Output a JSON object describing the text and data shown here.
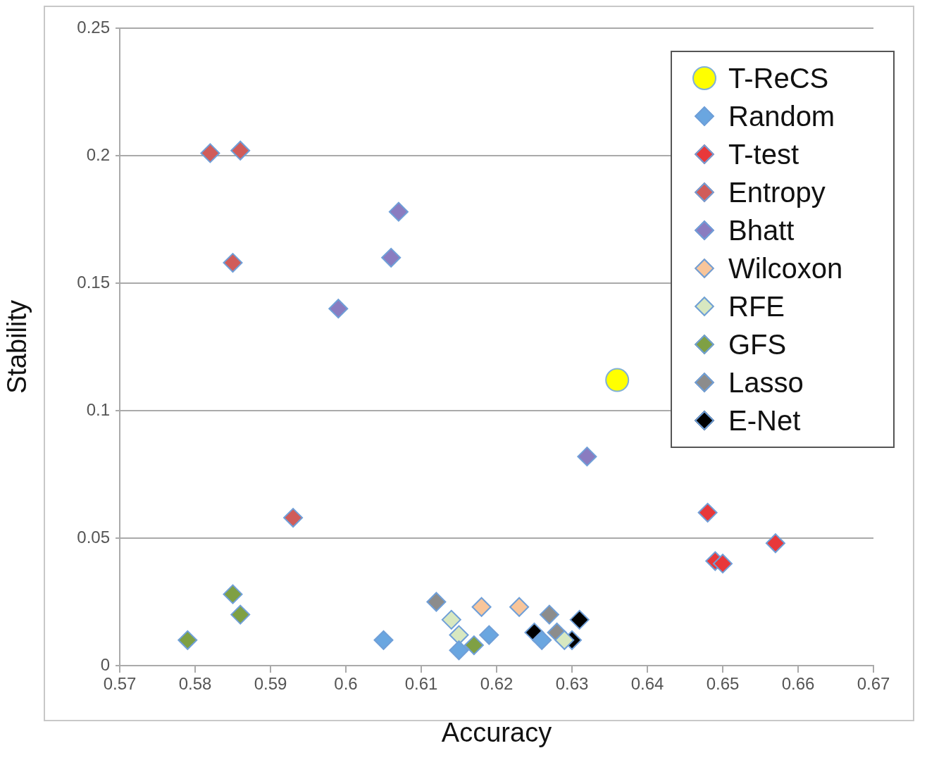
{
  "chart_data": {
    "type": "scatter",
    "xlabel": "Accuracy",
    "ylabel": "Stability",
    "xlim": [
      0.57,
      0.67
    ],
    "xticks": [
      0.57,
      0.58,
      0.59,
      0.6,
      0.61,
      0.62,
      0.63,
      0.64,
      0.65,
      0.66,
      0.67
    ],
    "ylim": [
      0,
      0.25
    ],
    "yticks": [
      0,
      0.05,
      0.1,
      0.15,
      0.2,
      0.25
    ],
    "grid": "y",
    "legend": "top right",
    "marker": "diamond",
    "series": [
      {
        "name": "T-ReCS",
        "color": "#ffff00",
        "marker": "circle",
        "x": [
          0.636
        ],
        "values": [
          0.112
        ]
      },
      {
        "name": "Random",
        "color": "#6aa6e0",
        "x": [
          0.605,
          0.615,
          0.619,
          0.626
        ],
        "values": [
          0.01,
          0.006,
          0.012,
          0.01
        ]
      },
      {
        "name": "T-test",
        "color": "#e8383a",
        "x": [
          0.648,
          0.649,
          0.65,
          0.657
        ],
        "values": [
          0.06,
          0.041,
          0.04,
          0.048
        ]
      },
      {
        "name": "Entropy",
        "color": "#d05c5a",
        "x": [
          0.582,
          0.586,
          0.585,
          0.593
        ],
        "values": [
          0.201,
          0.202,
          0.158,
          0.058
        ]
      },
      {
        "name": "Bhatt",
        "color": "#8a7cc0",
        "x": [
          0.607,
          0.606,
          0.599,
          0.632
        ],
        "values": [
          0.178,
          0.16,
          0.14,
          0.082
        ]
      },
      {
        "name": "Wilcoxon",
        "color": "#f8c59a",
        "x": [
          0.618,
          0.623
        ],
        "values": [
          0.023,
          0.023
        ]
      },
      {
        "name": "RFE",
        "color": "#d8e8c0",
        "x": [
          0.614,
          0.615,
          0.629
        ],
        "values": [
          0.018,
          0.012,
          0.01
        ]
      },
      {
        "name": "GFS",
        "color": "#7fa044",
        "x": [
          0.579,
          0.585,
          0.586,
          0.617
        ],
        "values": [
          0.01,
          0.028,
          0.02,
          0.008
        ]
      },
      {
        "name": "Lasso",
        "color": "#8c8c8c",
        "x": [
          0.612,
          0.627,
          0.628
        ],
        "values": [
          0.025,
          0.02,
          0.013
        ]
      },
      {
        "name": "E-Net",
        "color": "#000000",
        "x": [
          0.625,
          0.631,
          0.63
        ],
        "values": [
          0.013,
          0.018,
          0.01
        ]
      }
    ]
  }
}
